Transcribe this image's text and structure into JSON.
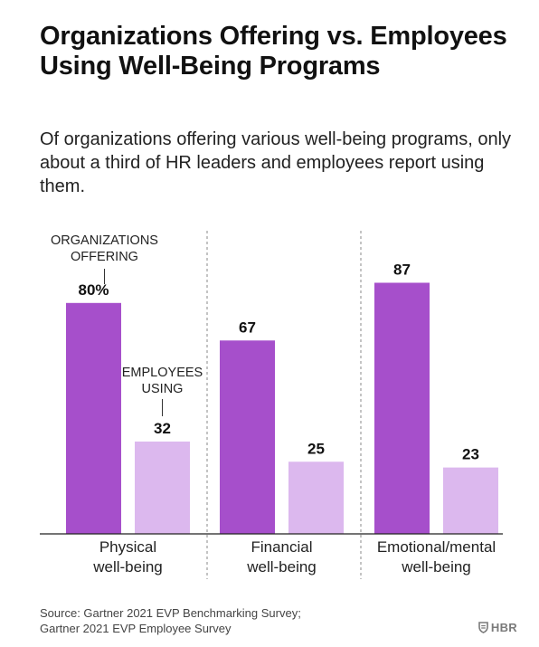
{
  "header": {
    "title": "Organizations Offering vs. Employees Using Well-Being Programs",
    "subtitle": "Of organizations offering various well-being programs, only about a third of HR leaders and employees report using them."
  },
  "chart_data": {
    "type": "bar",
    "categories": [
      "Physical well-being",
      "Financial well-being",
      "Emotional/mental well-being"
    ],
    "category_lines": [
      [
        "Physical",
        "well-being"
      ],
      [
        "Financial",
        "well-being"
      ],
      [
        "Emotional/mental",
        "well-being"
      ]
    ],
    "series": [
      {
        "name": "ORGANIZATIONS OFFERING",
        "name_lines": [
          "ORGANIZATIONS",
          "OFFERING"
        ],
        "values": [
          80,
          67,
          87
        ],
        "labels": [
          "80%",
          "67",
          "87"
        ],
        "color": "#a64fcb"
      },
      {
        "name": "EMPLOYEES USING",
        "name_lines": [
          "EMPLOYEES",
          "USING"
        ],
        "values": [
          32,
          25,
          23
        ],
        "labels": [
          "32",
          "25",
          "23"
        ],
        "color": "#dcb8ee"
      }
    ],
    "ylim": [
      0,
      100
    ],
    "grid": false,
    "legend": "inline-annotations"
  },
  "footer": {
    "source_line1": "Source: Gartner 2021 EVP Benchmarking Survey;",
    "source_line2": "Gartner 2021 EVP Employee Survey",
    "logo_text": "HBR",
    "logo_icon": "hbr-shield-icon"
  }
}
